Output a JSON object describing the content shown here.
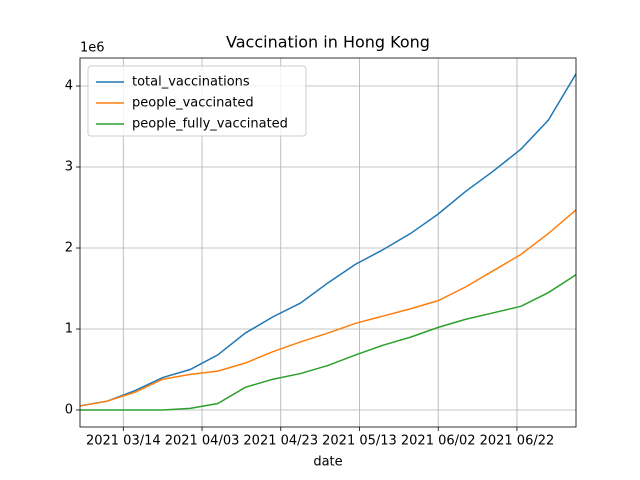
{
  "chart_data": {
    "type": "line",
    "title": "Vaccination in Hong Kong",
    "x_label": "date",
    "y_offset_label": "1e6",
    "x": [
      "2021-03-03",
      "2021-03-10",
      "2021-03-17",
      "2021-03-24",
      "2021-03-31",
      "2021-04-07",
      "2021-04-14",
      "2021-04-21",
      "2021-04-28",
      "2021-05-05",
      "2021-05-12",
      "2021-05-19",
      "2021-05-26",
      "2021-06-02",
      "2021-06-09",
      "2021-06-16",
      "2021-06-23",
      "2021-06-30",
      "2021-07-07"
    ],
    "series": [
      {
        "name": "total_vaccinations",
        "color": "#1f77b4",
        "values": [
          0.05,
          0.11,
          0.24,
          0.4,
          0.5,
          0.68,
          0.95,
          1.15,
          1.32,
          1.57,
          1.8,
          1.98,
          2.18,
          2.42,
          2.7,
          2.95,
          3.22,
          3.58,
          4.15
        ]
      },
      {
        "name": "people_vaccinated",
        "color": "#ff7f0e",
        "values": [
          0.05,
          0.11,
          0.22,
          0.38,
          0.44,
          0.48,
          0.58,
          0.72,
          0.84,
          0.95,
          1.07,
          1.16,
          1.25,
          1.35,
          1.52,
          1.72,
          1.92,
          2.18,
          2.47
        ]
      },
      {
        "name": "people_fully_vaccinated",
        "color": "#2ca02c",
        "values": [
          0,
          0,
          0,
          0,
          0.02,
          0.08,
          0.28,
          0.38,
          0.45,
          0.55,
          0.68,
          0.8,
          0.9,
          1.02,
          1.12,
          1.2,
          1.28,
          1.45,
          1.67
        ]
      }
    ],
    "xlim": [
      "2021-03-03",
      "2021-07-07"
    ],
    "xticks": [
      {
        "value": "2021-03-14",
        "label": "2021 03/14"
      },
      {
        "value": "2021-04-03",
        "label": "2021 04/03"
      },
      {
        "value": "2021-04-23",
        "label": "2021 04/23"
      },
      {
        "value": "2021-05-13",
        "label": "2021 05/13"
      },
      {
        "value": "2021-06-02",
        "label": "2021 06/02"
      },
      {
        "value": "2021-06-22",
        "label": "2021 06/22"
      }
    ],
    "ylim": [
      -0.21,
      4.346
    ],
    "yticks": [
      0,
      1,
      2,
      3,
      4
    ],
    "grid": true,
    "legend": "upper-left"
  }
}
